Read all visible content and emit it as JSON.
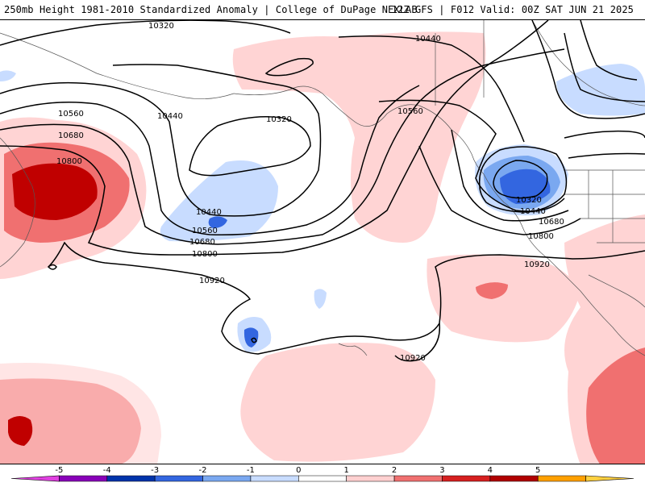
{
  "header": {
    "title_left": "250mb Height 1981-2010 Standardized Anomaly | College of DuPage NEXLAB",
    "title_right": "12Z GFS | F012 Valid: 00Z SAT JUN 21 2025"
  },
  "contour_labels": {
    "c1": "10320",
    "c2": "10440",
    "c3": "10560",
    "c4": "10680",
    "c5": "10800",
    "c6": "10440",
    "c7": "10320",
    "c8": "10440",
    "c9": "10560",
    "c10": "10680",
    "c11": "10800",
    "c12": "10920",
    "c13": "10560",
    "c14": "10320",
    "c15": "10440",
    "c16": "10680",
    "c17": "10800",
    "c18": "10920",
    "c19": "10920"
  },
  "colorbar": {
    "ticks": [
      "-5",
      "-4",
      "-3",
      "-2",
      "-1",
      "0",
      "1",
      "2",
      "3",
      "4",
      "5"
    ],
    "colors": [
      "#e040e0",
      "#8800b8",
      "#0033aa",
      "#3366e0",
      "#7aa8f0",
      "#c8dcff",
      "#ffffff",
      "#ffd0d0",
      "#f07070",
      "#d62020",
      "#b00000",
      "#ffa000",
      "#ffd040"
    ]
  }
}
